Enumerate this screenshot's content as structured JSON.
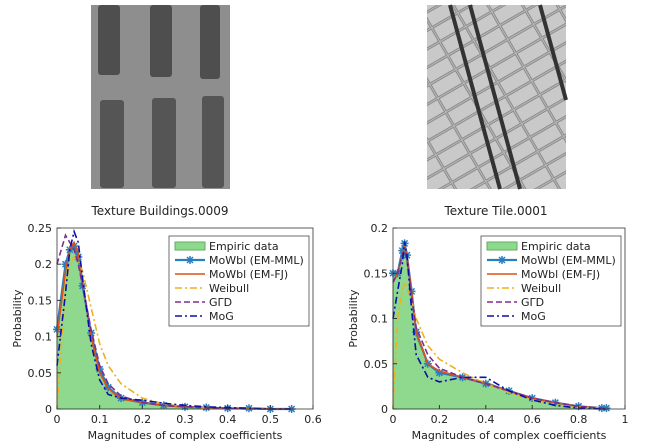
{
  "chart_data": [
    {
      "type": "line",
      "title": "Texture Buildings.0009",
      "x_label": "Magnitudes of complex coefficients",
      "y_label": "Probability",
      "x": [
        0,
        0.02,
        0.03,
        0.04,
        0.05,
        0.06,
        0.08,
        0.1,
        0.12,
        0.15,
        0.2,
        0.25,
        0.3,
        0.35,
        0.4,
        0.45,
        0.5,
        0.55
      ],
      "xlim": [
        0,
        0.6
      ],
      "xticks": [
        0,
        0.1,
        0.2,
        0.3,
        0.4,
        0.5,
        0.6
      ],
      "ylim": [
        0,
        0.25
      ],
      "yticks": [
        0,
        0.05,
        0.1,
        0.15,
        0.2,
        0.25
      ],
      "grid": false,
      "legend": "upper right",
      "series": [
        {
          "name": "Empiric data",
          "style": "area",
          "color": "#8fd98f",
          "values": [
            0.11,
            0.2,
            0.22,
            0.23,
            0.22,
            0.18,
            0.1,
            0.05,
            0.025,
            0.013,
            0.008,
            0.005,
            0.003,
            0.002,
            0.001,
            0.001,
            0,
            0
          ]
        },
        {
          "name": "MoWbl (EM-MML)",
          "style": "solid",
          "marker": "star",
          "color": "#2a7fc0",
          "values": [
            0.11,
            0.2,
            0.22,
            0.225,
            0.21,
            0.17,
            0.105,
            0.055,
            0.03,
            0.015,
            0.009,
            0.005,
            0.003,
            0.002,
            0.001,
            0.001,
            0,
            0
          ]
        },
        {
          "name": "MoWbl (EM-FJ)",
          "style": "solid",
          "color": "#d95319",
          "values": [
            0.1,
            0.19,
            0.22,
            0.23,
            0.215,
            0.175,
            0.1,
            0.05,
            0.028,
            0.014,
            0.009,
            0.005,
            0.003,
            0.002,
            0.001,
            0.001,
            0,
            0
          ]
        },
        {
          "name": "Weibull",
          "style": "dashdot",
          "color": "#edb120",
          "values": [
            0,
            0.17,
            0.2,
            0.21,
            0.205,
            0.19,
            0.14,
            0.09,
            0.06,
            0.035,
            0.015,
            0.007,
            0.003,
            0.001,
            0.001,
            0,
            0,
            0
          ]
        },
        {
          "name": "GΓD",
          "style": "dashed",
          "color": "#7e2f8e",
          "values": [
            0.2,
            0.24,
            0.23,
            0.22,
            0.2,
            0.17,
            0.11,
            0.06,
            0.035,
            0.018,
            0.009,
            0.005,
            0.003,
            0.002,
            0.001,
            0,
            0,
            0
          ]
        },
        {
          "name": "MoG",
          "style": "dashdot",
          "color": "#0a10a8",
          "values": [
            0.06,
            0.16,
            0.22,
            0.245,
            0.23,
            0.18,
            0.09,
            0.04,
            0.02,
            0.015,
            0.012,
            0.008,
            0.005,
            0.003,
            0.002,
            0.001,
            0,
            0
          ]
        }
      ]
    },
    {
      "type": "line",
      "title": "Texture Tile.0001",
      "x_label": "Magnitudes of complex coefficients",
      "y_label": "Probability",
      "x": [
        0,
        0.02,
        0.04,
        0.05,
        0.06,
        0.08,
        0.1,
        0.15,
        0.2,
        0.3,
        0.4,
        0.5,
        0.6,
        0.7,
        0.8,
        0.9,
        0.92
      ],
      "xlim": [
        0,
        1
      ],
      "xticks": [
        0,
        0.2,
        0.4,
        0.6,
        0.8,
        1
      ],
      "ylim": [
        0,
        0.2
      ],
      "yticks": [
        0,
        0.05,
        0.1,
        0.15,
        0.2
      ],
      "grid": false,
      "legend": "upper right",
      "series": [
        {
          "name": "Empiric data",
          "style": "area",
          "color": "#8fd98f",
          "values": [
            0.15,
            0.15,
            0.17,
            0.18,
            0.17,
            0.12,
            0.08,
            0.05,
            0.04,
            0.035,
            0.03,
            0.02,
            0.012,
            0.007,
            0.003,
            0.001,
            0
          ]
        },
        {
          "name": "MoWbl (EM-MML)",
          "style": "solid",
          "marker": "star",
          "color": "#2a7fc0",
          "values": [
            0.15,
            0.15,
            0.175,
            0.183,
            0.17,
            0.13,
            0.085,
            0.05,
            0.04,
            0.035,
            0.028,
            0.02,
            0.012,
            0.007,
            0.003,
            0.001,
            0.001
          ]
        },
        {
          "name": "MoWbl (EM-FJ)",
          "style": "solid",
          "color": "#d95319",
          "values": [
            0.14,
            0.15,
            0.17,
            0.18,
            0.17,
            0.13,
            0.085,
            0.05,
            0.042,
            0.035,
            0.028,
            0.02,
            0.012,
            0.007,
            0.003,
            0.001,
            0
          ]
        },
        {
          "name": "Weibull",
          "style": "dashdot",
          "color": "#edb120",
          "values": [
            0,
            0.1,
            0.13,
            0.14,
            0.135,
            0.12,
            0.1,
            0.07,
            0.055,
            0.04,
            0.028,
            0.018,
            0.01,
            0.005,
            0.002,
            0.001,
            0
          ]
        },
        {
          "name": "GΓD",
          "style": "dashed",
          "color": "#7e2f8e",
          "values": [
            0.14,
            0.15,
            0.17,
            0.175,
            0.165,
            0.125,
            0.09,
            0.06,
            0.045,
            0.035,
            0.028,
            0.02,
            0.012,
            0.007,
            0.003,
            0.001,
            0
          ]
        },
        {
          "name": "MoG",
          "style": "dashdot",
          "color": "#0a10a8",
          "values": [
            0.1,
            0.13,
            0.16,
            0.185,
            0.17,
            0.11,
            0.06,
            0.035,
            0.03,
            0.035,
            0.035,
            0.02,
            0.01,
            0.004,
            0.001,
            0,
            0
          ]
        }
      ]
    }
  ]
}
